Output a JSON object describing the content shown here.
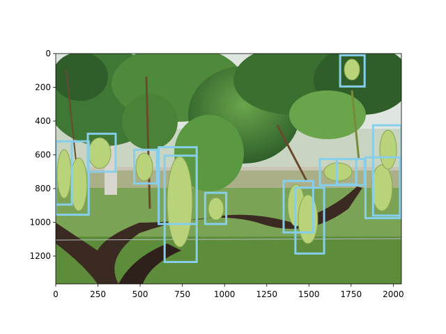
{
  "image": {
    "description_icon": "vineyard-grape-clusters-photo",
    "colors": {
      "sky": "#e9ecea",
      "foliage_dark": "#2f5e2a",
      "foliage_mid": "#4f8a3c",
      "foliage_light": "#7fb05a",
      "grass": "#6e9a4a",
      "trunk": "#3b2a22",
      "grape": "#b9d37a",
      "grape_shadow": "#86a64e",
      "box": "#87ceeb"
    }
  },
  "axes": {
    "x_ticks": [
      "0",
      "250",
      "500",
      "750",
      "1000",
      "1250",
      "1500",
      "1750",
      "2000"
    ],
    "y_ticks": [
      "0",
      "200",
      "400",
      "600",
      "800",
      "1000",
      "1200"
    ],
    "xlim": [
      0,
      2048
    ],
    "ylim": [
      1365,
      0
    ]
  },
  "detections": [
    {
      "x0": 0,
      "y0": 520,
      "x1": 95,
      "y1": 895
    },
    {
      "x0": 0,
      "y0": 520,
      "x1": 195,
      "y1": 955
    },
    {
      "x0": 190,
      "y0": 475,
      "x1": 355,
      "y1": 700
    },
    {
      "x0": 465,
      "y0": 570,
      "x1": 600,
      "y1": 770
    },
    {
      "x0": 610,
      "y0": 555,
      "x1": 835,
      "y1": 1010
    },
    {
      "x0": 645,
      "y0": 605,
      "x1": 835,
      "y1": 1235
    },
    {
      "x0": 885,
      "y0": 825,
      "x1": 1010,
      "y1": 1010
    },
    {
      "x0": 1350,
      "y0": 755,
      "x1": 1525,
      "y1": 1060
    },
    {
      "x0": 1420,
      "y0": 795,
      "x1": 1590,
      "y1": 1185
    },
    {
      "x0": 1565,
      "y0": 625,
      "x1": 1830,
      "y1": 780
    },
    {
      "x0": 1665,
      "y0": 625,
      "x1": 1780,
      "y1": 775
    },
    {
      "x0": 1685,
      "y0": 10,
      "x1": 1830,
      "y1": 195
    },
    {
      "x0": 1835,
      "y0": 615,
      "x1": 2040,
      "y1": 975
    },
    {
      "x0": 1880,
      "y0": 425,
      "x1": 2048,
      "y1": 960
    }
  ]
}
